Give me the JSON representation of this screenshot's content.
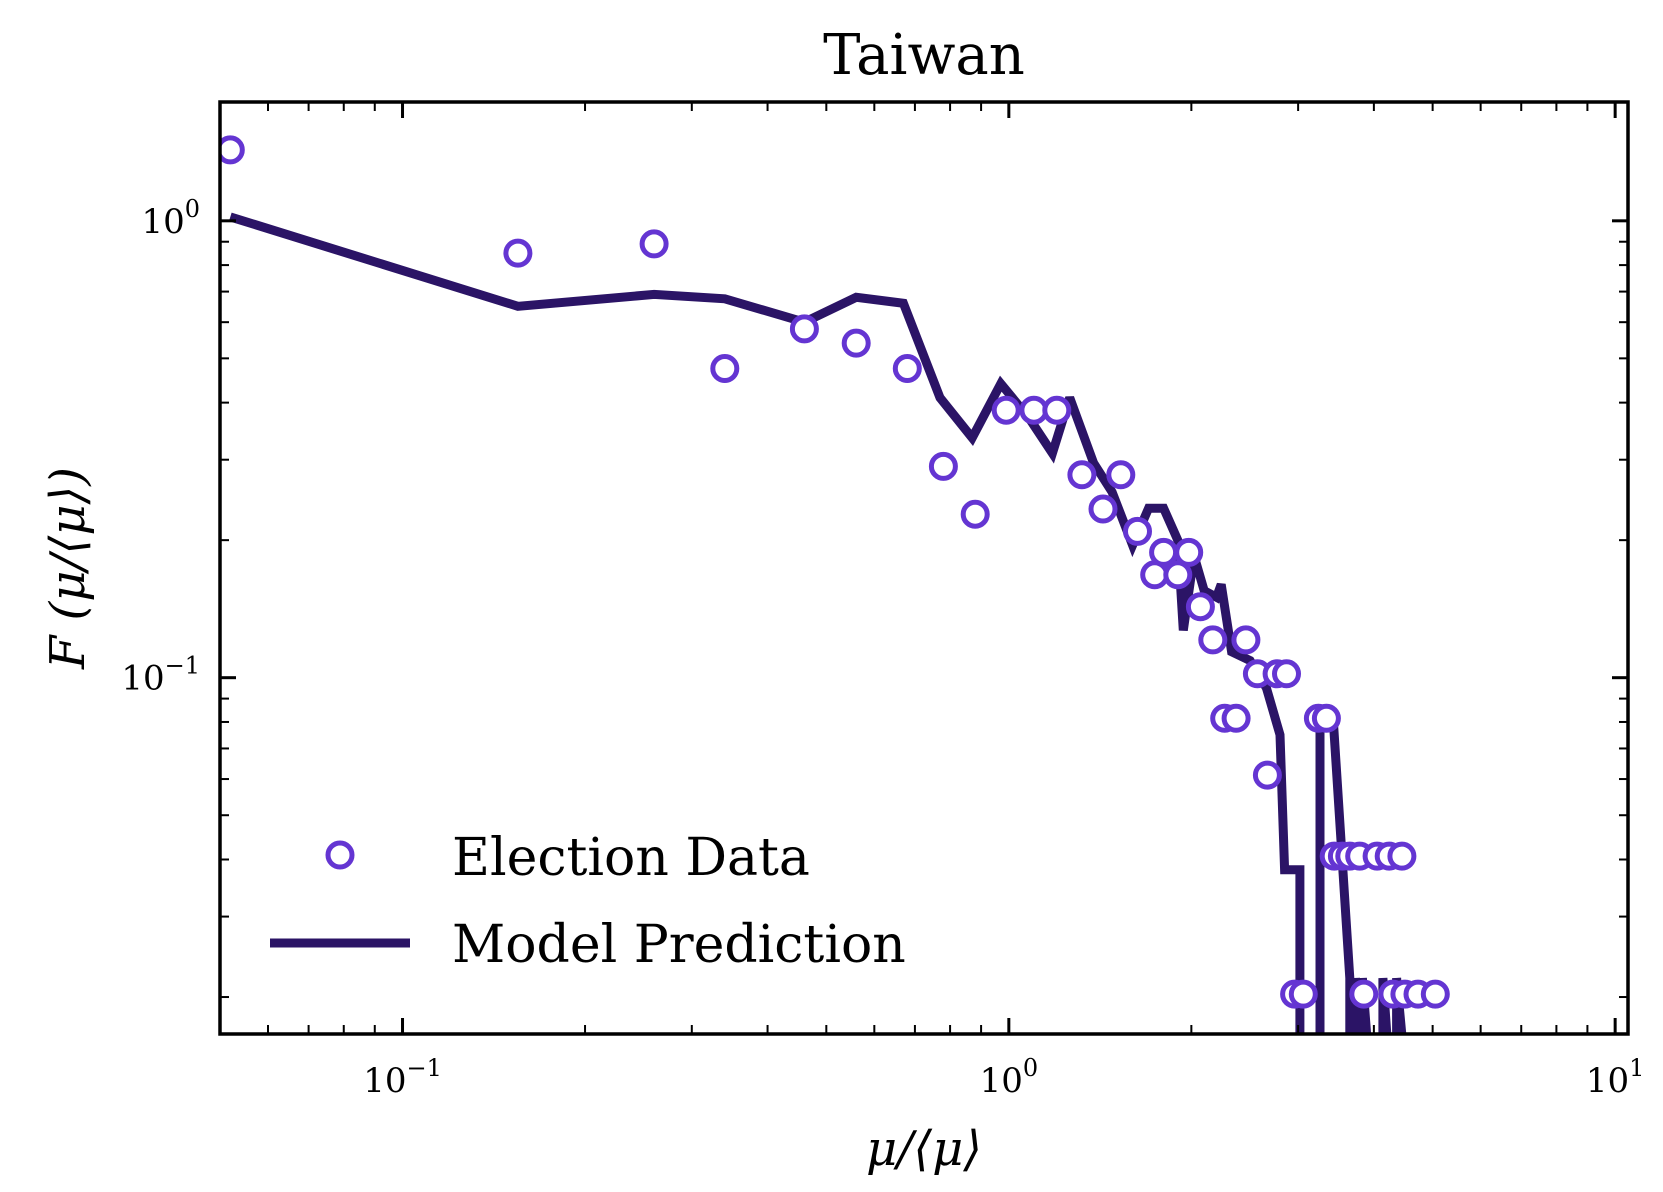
{
  "chart_data": {
    "type": "line",
    "title": "Taiwan",
    "xlabel": "μ/⟨μ⟩",
    "ylabel": "F (μ/⟨μ⟩)",
    "xscale": "log",
    "yscale": "log",
    "xlim": [
      0.05,
      10.5
    ],
    "ylim": [
      0.0166,
      1.82
    ],
    "xticks": [
      {
        "value": 0.1,
        "base": "10",
        "exp": "−1"
      },
      {
        "value": 1,
        "base": "10",
        "exp": "0"
      },
      {
        "value": 10,
        "base": "10",
        "exp": "1"
      }
    ],
    "yticks": [
      {
        "value": 0.1,
        "base": "10",
        "exp": "−1"
      },
      {
        "value": 1,
        "base": "10",
        "exp": "0"
      }
    ],
    "grid": false,
    "legend": "bottom-left",
    "series": [
      {
        "name": "Election Data",
        "kind": "scatter",
        "color": "#6435d2",
        "points": [
          [
            0.052,
            1.43
          ],
          [
            0.155,
            0.85
          ],
          [
            0.26,
            0.89
          ],
          [
            0.34,
            0.475
          ],
          [
            0.46,
            0.58
          ],
          [
            0.56,
            0.54
          ],
          [
            0.68,
            0.475
          ],
          [
            0.78,
            0.29
          ],
          [
            0.88,
            0.228
          ],
          [
            0.99,
            0.385
          ],
          [
            1.1,
            0.385
          ],
          [
            1.2,
            0.385
          ],
          [
            1.32,
            0.278
          ],
          [
            1.43,
            0.234
          ],
          [
            1.53,
            0.278
          ],
          [
            1.63,
            0.209
          ],
          [
            1.74,
            0.168
          ],
          [
            1.8,
            0.188
          ],
          [
            1.9,
            0.168
          ],
          [
            1.98,
            0.188
          ],
          [
            2.07,
            0.143
          ],
          [
            2.17,
            0.121
          ],
          [
            2.27,
            0.0815
          ],
          [
            2.37,
            0.0815
          ],
          [
            2.46,
            0.121
          ],
          [
            2.57,
            0.102
          ],
          [
            2.67,
            0.0612
          ],
          [
            2.77,
            0.102
          ],
          [
            2.87,
            0.102
          ],
          [
            2.96,
            0.0203
          ],
          [
            3.06,
            0.0203
          ],
          [
            3.24,
            0.0815
          ],
          [
            3.34,
            0.0815
          ],
          [
            3.44,
            0.0407
          ],
          [
            3.55,
            0.0407
          ],
          [
            3.65,
            0.0407
          ],
          [
            3.79,
            0.0407
          ],
          [
            3.85,
            0.0203
          ],
          [
            4.05,
            0.0407
          ],
          [
            4.24,
            0.0407
          ],
          [
            4.3,
            0.0203
          ],
          [
            4.45,
            0.0407
          ],
          [
            4.5,
            0.0203
          ],
          [
            4.73,
            0.0203
          ],
          [
            5.05,
            0.0203
          ]
        ]
      },
      {
        "name": "Model Prediction",
        "kind": "line",
        "color": "#2b1466",
        "points": [
          [
            0.052,
            1.02
          ],
          [
            0.155,
            0.65
          ],
          [
            0.26,
            0.69
          ],
          [
            0.34,
            0.675
          ],
          [
            0.46,
            0.6
          ],
          [
            0.56,
            0.68
          ],
          [
            0.67,
            0.66
          ],
          [
            0.77,
            0.41
          ],
          [
            0.87,
            0.335
          ],
          [
            0.97,
            0.44
          ],
          [
            1.08,
            0.37
          ],
          [
            1.18,
            0.31
          ],
          [
            1.26,
            0.41
          ],
          [
            1.38,
            0.295
          ],
          [
            1.48,
            0.255
          ],
          [
            1.6,
            0.195
          ],
          [
            1.7,
            0.235
          ],
          [
            1.8,
            0.235
          ],
          [
            1.9,
            0.2
          ],
          [
            1.94,
            0.127
          ],
          [
            2.02,
            0.185
          ],
          [
            2.1,
            0.155
          ],
          [
            2.2,
            0.15
          ],
          [
            2.24,
            0.16
          ],
          [
            2.33,
            0.114
          ],
          [
            2.5,
            0.109
          ],
          [
            2.66,
            0.095
          ],
          [
            2.8,
            0.075
          ],
          [
            2.85,
            0.038
          ],
          [
            3.02,
            0.038
          ],
          [
            3.02,
            0.014
          ],
          [
            3.26,
            0.014
          ],
          [
            3.26,
            0.08
          ],
          [
            3.43,
            0.08
          ],
          [
            3.65,
            0.022
          ],
          [
            3.65,
            0.014
          ],
          [
            3.73,
            0.014
          ],
          [
            3.73,
            0.022
          ],
          [
            3.83,
            0.014
          ],
          [
            3.83,
            0.022
          ],
          [
            3.93,
            0.014
          ],
          [
            4.14,
            0.014
          ],
          [
            4.14,
            0.022
          ],
          [
            4.24,
            0.014
          ],
          [
            4.36,
            0.014
          ],
          [
            4.36,
            0.022
          ],
          [
            4.5,
            0.014
          ]
        ]
      }
    ]
  }
}
